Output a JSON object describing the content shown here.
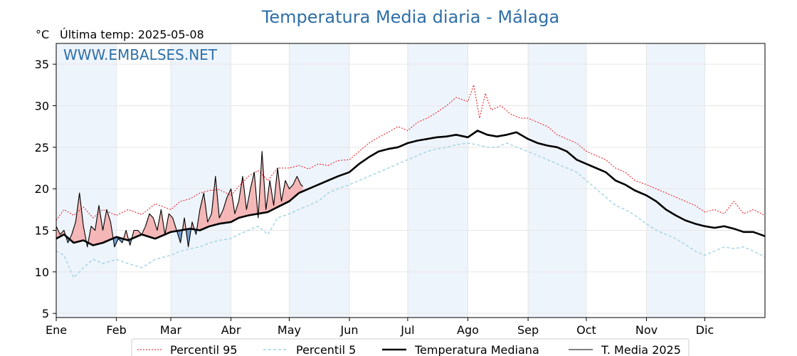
{
  "title": "Temperatura Media diaria - Málaga",
  "unit_label": "°C",
  "last_temp_label": "Última temp: 2025-05-08",
  "watermark": "WWW.EMBALSES.NET",
  "colors": {
    "title": "#2e6fa7",
    "p95": "#e8121a",
    "p5": "#9fd3e6",
    "median": "#000000",
    "current": "#000000",
    "above_fill": "#f4b6b6",
    "below_fill": "#6f9fcf",
    "band": "#eef4fb"
  },
  "legend": [
    {
      "label": "Percentil 95",
      "key": "p95"
    },
    {
      "label": "Percentil 5",
      "key": "p5"
    },
    {
      "label": "Temperatura Mediana",
      "key": "median"
    },
    {
      "label": "T. Media 2025",
      "key": "current"
    }
  ],
  "chart_data": {
    "type": "line",
    "x_unit": "day_of_year",
    "xlim": [
      1,
      366
    ],
    "ylim": [
      4.5,
      37.5
    ],
    "yticks": [
      5,
      10,
      15,
      20,
      25,
      30,
      35
    ],
    "months": [
      {
        "label": "Ene",
        "day": 1
      },
      {
        "label": "Feb",
        "day": 32
      },
      {
        "label": "Mar",
        "day": 60
      },
      {
        "label": "Abr",
        "day": 91
      },
      {
        "label": "May",
        "day": 121
      },
      {
        "label": "Jun",
        "day": 152
      },
      {
        "label": "Jul",
        "day": 182
      },
      {
        "label": "Ago",
        "day": 213
      },
      {
        "label": "Sep",
        "day": 244
      },
      {
        "label": "Oct",
        "day": 274
      },
      {
        "label": "Nov",
        "day": 305
      },
      {
        "label": "Dic",
        "day": 335
      }
    ],
    "shaded_months": [
      {
        "from": 1,
        "to": 32
      },
      {
        "from": 60,
        "to": 91
      },
      {
        "from": 121,
        "to": 152
      },
      {
        "from": 182,
        "to": 213
      },
      {
        "from": 244,
        "to": 274
      },
      {
        "from": 305,
        "to": 335
      }
    ],
    "grid": true,
    "legend_position": "bottom",
    "series": [
      {
        "name": "Percentil 95",
        "key": "p95",
        "x": [
          1,
          5,
          10,
          15,
          20,
          25,
          32,
          38,
          45,
          52,
          60,
          65,
          70,
          75,
          80,
          85,
          91,
          95,
          100,
          105,
          110,
          115,
          121,
          126,
          131,
          136,
          141,
          146,
          152,
          157,
          162,
          167,
          172,
          177,
          182,
          187,
          192,
          197,
          202,
          207,
          213,
          216,
          219,
          222,
          225,
          230,
          235,
          240,
          244,
          249,
          254,
          259,
          264,
          269,
          274,
          279,
          284,
          289,
          294,
          299,
          305,
          310,
          315,
          320,
          325,
          330,
          335,
          340,
          345,
          350,
          355,
          360,
          366
        ],
        "values": [
          16.2,
          17.5,
          16.8,
          17.8,
          16.5,
          17.5,
          16.8,
          17.5,
          16.9,
          18.2,
          17.5,
          18.5,
          18.8,
          19.5,
          19.8,
          19.9,
          19.2,
          20.3,
          21.5,
          22.2,
          21.0,
          22.5,
          22.5,
          22.8,
          22.4,
          23.0,
          22.8,
          23.4,
          23.5,
          24.5,
          25.5,
          26.2,
          26.8,
          27.5,
          27.0,
          28.0,
          28.5,
          29.2,
          30.0,
          31.0,
          30.5,
          32.5,
          28.5,
          31.5,
          29.5,
          30.0,
          29.0,
          28.5,
          28.5,
          28.0,
          27.5,
          26.5,
          26.0,
          25.5,
          24.5,
          24.0,
          23.5,
          22.5,
          22.0,
          21.0,
          20.5,
          20.0,
          19.5,
          19.0,
          18.5,
          18.0,
          17.2,
          17.5,
          17.0,
          18.5,
          17.0,
          17.5,
          16.8
        ]
      },
      {
        "name": "Percentil 5",
        "key": "p5",
        "x": [
          1,
          5,
          10,
          15,
          20,
          25,
          32,
          38,
          45,
          52,
          60,
          65,
          70,
          75,
          80,
          85,
          91,
          95,
          100,
          105,
          110,
          115,
          121,
          126,
          131,
          136,
          141,
          146,
          152,
          157,
          162,
          167,
          172,
          177,
          182,
          187,
          192,
          197,
          202,
          207,
          213,
          218,
          223,
          228,
          233,
          238,
          244,
          249,
          254,
          259,
          264,
          269,
          274,
          279,
          284,
          289,
          294,
          299,
          305,
          310,
          315,
          320,
          325,
          330,
          335,
          340,
          345,
          350,
          355,
          360,
          366
        ],
        "values": [
          12.5,
          12.0,
          9.3,
          10.5,
          11.5,
          11.0,
          11.5,
          11.0,
          10.5,
          11.5,
          12.0,
          12.5,
          12.8,
          13.0,
          13.5,
          13.8,
          14.0,
          14.5,
          15.0,
          15.5,
          14.5,
          16.5,
          17.0,
          17.5,
          18.0,
          18.5,
          19.5,
          20.0,
          20.5,
          21.0,
          21.5,
          22.0,
          22.5,
          23.0,
          23.5,
          24.0,
          24.5,
          24.8,
          25.0,
          25.3,
          25.5,
          25.3,
          25.0,
          25.0,
          25.5,
          25.0,
          24.5,
          24.0,
          23.5,
          23.0,
          22.5,
          22.0,
          21.0,
          20.0,
          19.0,
          18.0,
          17.5,
          16.8,
          15.8,
          15.0,
          14.5,
          14.0,
          13.3,
          12.5,
          12.0,
          12.5,
          13.0,
          12.8,
          13.0,
          12.5,
          11.8
        ]
      },
      {
        "name": "Temperatura Mediana",
        "key": "median",
        "x": [
          1,
          5,
          10,
          15,
          20,
          25,
          32,
          38,
          45,
          52,
          60,
          65,
          70,
          75,
          80,
          85,
          91,
          95,
          100,
          105,
          110,
          115,
          121,
          126,
          131,
          136,
          141,
          146,
          152,
          157,
          162,
          167,
          172,
          177,
          182,
          187,
          192,
          197,
          202,
          207,
          213,
          218,
          223,
          228,
          233,
          238,
          244,
          249,
          254,
          259,
          264,
          269,
          274,
          279,
          284,
          289,
          294,
          299,
          305,
          310,
          315,
          320,
          325,
          330,
          335,
          340,
          345,
          350,
          355,
          360,
          366
        ],
        "values": [
          14.0,
          14.5,
          13.5,
          13.8,
          13.2,
          13.5,
          14.2,
          13.8,
          14.5,
          14.0,
          14.8,
          15.0,
          15.2,
          15.0,
          15.5,
          15.8,
          16.0,
          16.5,
          16.8,
          17.0,
          17.2,
          17.8,
          18.5,
          19.5,
          20.0,
          20.5,
          21.0,
          21.5,
          22.0,
          23.0,
          23.8,
          24.5,
          24.8,
          25.0,
          25.5,
          25.8,
          26.0,
          26.2,
          26.3,
          26.5,
          26.2,
          27.0,
          26.5,
          26.3,
          26.5,
          26.8,
          26.0,
          25.5,
          25.2,
          25.0,
          24.5,
          23.5,
          23.0,
          22.5,
          22.0,
          21.0,
          20.5,
          19.8,
          19.2,
          18.5,
          17.5,
          16.8,
          16.2,
          15.8,
          15.5,
          15.3,
          15.5,
          15.2,
          14.8,
          14.8,
          14.3
        ]
      },
      {
        "name": "T. Media 2025",
        "key": "current",
        "x": [
          1,
          3,
          5,
          7,
          9,
          11,
          13,
          15,
          17,
          19,
          21,
          23,
          25,
          27,
          29,
          31,
          33,
          35,
          37,
          39,
          41,
          43,
          45,
          47,
          49,
          51,
          53,
          55,
          57,
          59,
          61,
          63,
          65,
          67,
          69,
          71,
          73,
          75,
          77,
          79,
          81,
          83,
          85,
          87,
          89,
          91,
          93,
          95,
          97,
          99,
          101,
          103,
          105,
          107,
          109,
          111,
          113,
          115,
          117,
          119,
          121,
          123,
          125,
          127,
          128
        ],
        "values": [
          15.5,
          14.5,
          15.0,
          13.5,
          14.5,
          16.0,
          19.5,
          15.5,
          13.0,
          15.5,
          15.0,
          18.0,
          15.0,
          17.5,
          16.0,
          13.0,
          14.0,
          13.5,
          15.0,
          13.2,
          15.0,
          15.0,
          14.5,
          15.5,
          17.0,
          16.5,
          15.0,
          17.5,
          14.5,
          17.0,
          16.5,
          15.0,
          13.5,
          16.5,
          13.0,
          16.0,
          14.5,
          17.5,
          19.5,
          16.0,
          17.0,
          21.5,
          16.5,
          17.5,
          19.0,
          20.0,
          17.0,
          18.5,
          21.5,
          17.5,
          20.0,
          22.0,
          16.5,
          24.5,
          17.5,
          21.0,
          18.0,
          22.5,
          18.5,
          21.0,
          20.0,
          20.5,
          21.5,
          20.5,
          20.3
        ]
      }
    ]
  }
}
